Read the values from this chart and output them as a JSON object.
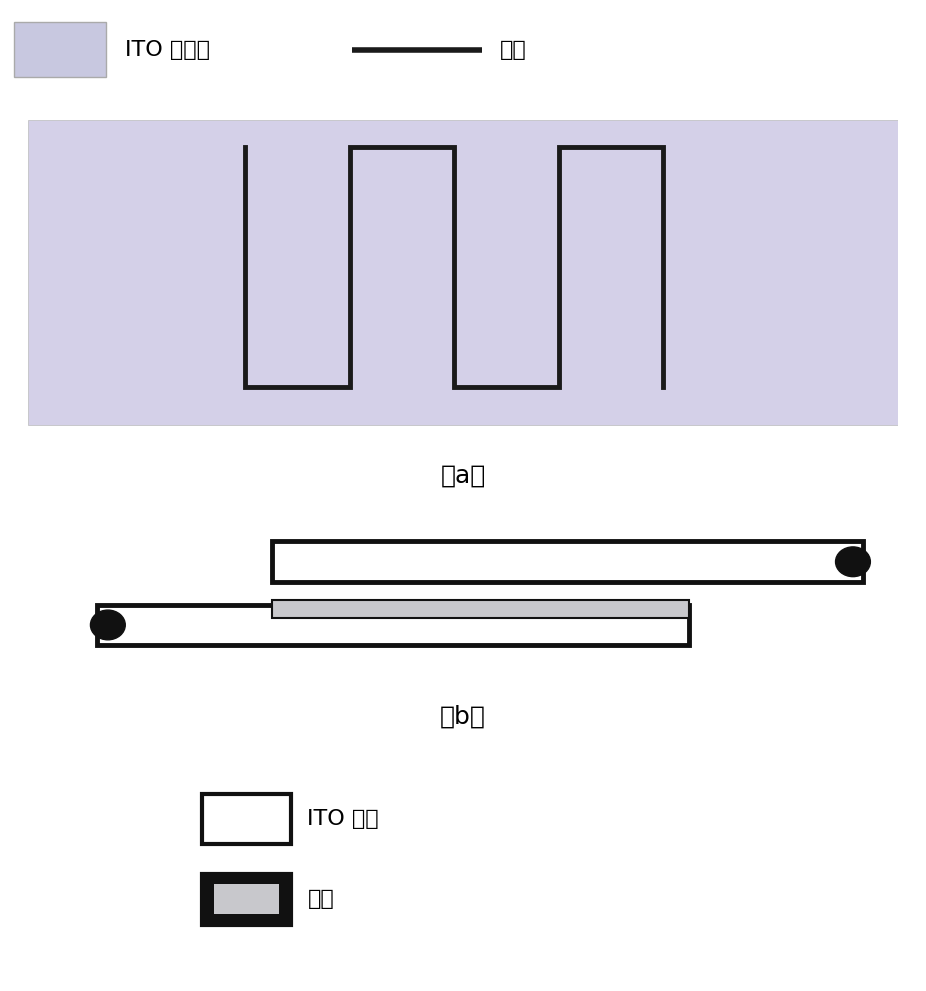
{
  "bg_color": "#ffffff",
  "ito_film_color": "#d4d0e8",
  "ito_film_color_legend": "#c8c8e0",
  "channel_color": "#1a1a1a",
  "label_a": "（a）",
  "label_b": "（b）",
  "legend_ito_label": "ITO 导电膜",
  "legend_channel_label": "沟道",
  "legend_ito_glass_label": "ITO 玻璃",
  "legend_sample_label": "样品",
  "font_size": 16,
  "line_width": 3.5,
  "serpentine_x": [
    2.5,
    2.5,
    3.7,
    3.7,
    4.9,
    4.9,
    6.1,
    6.1,
    7.3,
    7.3
  ],
  "serpentine_y": [
    2.65,
    0.45,
    0.45,
    2.65,
    2.65,
    0.45,
    0.45,
    2.65,
    2.65,
    0.45
  ]
}
